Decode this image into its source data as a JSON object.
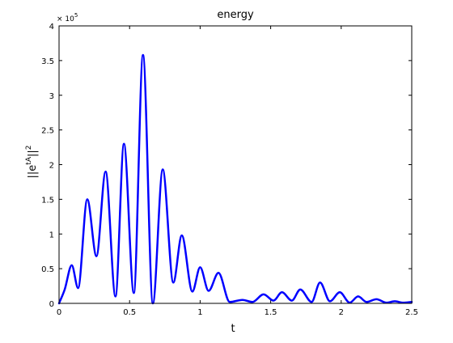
{
  "chart_data": {
    "type": "line",
    "title": "energy",
    "xlabel": "t",
    "ylabel_base": "||e",
    "ylabel_sup1": "tA",
    "ylabel_mid": "||",
    "ylabel_sup2": "2",
    "y_exponent_prefix": "× 10",
    "y_exponent_power": "5",
    "xlim": [
      0,
      2.5
    ],
    "ylim": [
      0,
      400000
    ],
    "xticks": [
      0,
      0.5,
      1,
      1.5,
      2,
      2.5
    ],
    "xtick_labels": [
      "0",
      "0.5",
      "1",
      "1.5",
      "2",
      "2.5"
    ],
    "yticks": [
      0,
      50000,
      100000,
      150000,
      200000,
      250000,
      300000,
      350000,
      400000
    ],
    "ytick_labels": [
      "0",
      "0.5",
      "1",
      "1.5",
      "2",
      "2.5",
      "3",
      "3.5",
      "4"
    ],
    "grid": false,
    "line_color": "#0000ff",
    "series": [
      {
        "x": [
          0,
          0.04,
          0.09,
          0.135,
          0.2,
          0.265,
          0.33,
          0.4,
          0.46,
          0.53,
          0.595,
          0.665,
          0.735,
          0.81,
          0.87,
          0.945,
          1.0,
          1.06,
          1.13,
          1.21,
          1.3,
          1.37,
          1.45,
          1.52,
          1.58,
          1.65,
          1.71,
          1.79,
          1.85,
          1.92,
          1.99,
          2.06,
          2.12,
          2.18,
          2.25,
          2.32,
          2.38,
          2.44,
          2.5
        ],
        "y": [
          0,
          20000,
          55000,
          22000,
          150000,
          68000,
          190000,
          10000,
          230000,
          15000,
          358000,
          0,
          193000,
          30000,
          98000,
          17000,
          52000,
          18000,
          44000,
          2000,
          5000,
          2000,
          13000,
          4000,
          16000,
          4000,
          20000,
          2000,
          30000,
          3000,
          16000,
          1000,
          10000,
          2000,
          6000,
          1000,
          3000,
          1000,
          2000
        ]
      }
    ]
  }
}
